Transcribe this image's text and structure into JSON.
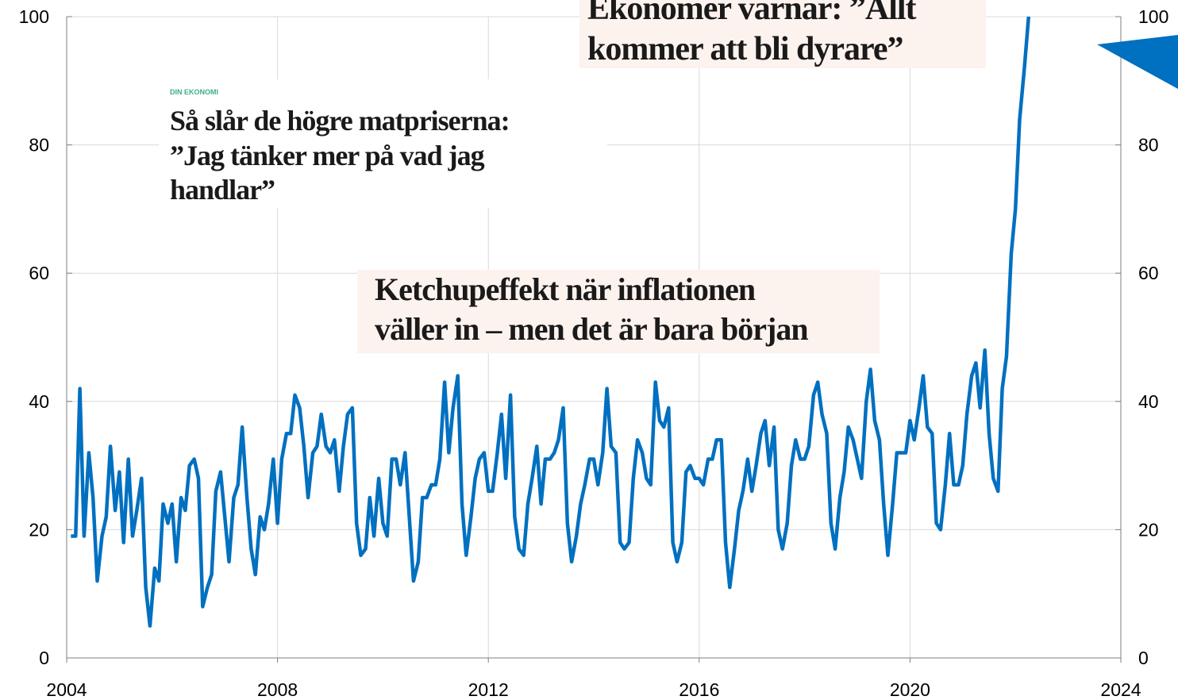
{
  "chart_data": {
    "type": "line",
    "x": [
      2004.08,
      2004.17,
      2004.25,
      2004.33,
      2004.42,
      2004.5,
      2004.58,
      2004.67,
      2004.75,
      2004.83,
      2004.92,
      2005,
      2005.08,
      2005.17,
      2005.25,
      2005.33,
      2005.42,
      2005.5,
      2005.58,
      2005.67,
      2005.75,
      2005.83,
      2005.92,
      2006,
      2006.08,
      2006.17,
      2006.25,
      2006.33,
      2006.42,
      2006.5,
      2006.58,
      2006.67,
      2006.75,
      2006.83,
      2006.92,
      2007,
      2007.08,
      2007.17,
      2007.25,
      2007.33,
      2007.42,
      2007.5,
      2007.58,
      2007.67,
      2007.75,
      2007.83,
      2007.92,
      2008,
      2008.08,
      2008.17,
      2008.25,
      2008.33,
      2008.42,
      2008.5,
      2008.58,
      2008.67,
      2008.75,
      2008.83,
      2008.92,
      2009,
      2009.08,
      2009.17,
      2009.25,
      2009.33,
      2009.42,
      2009.5,
      2009.58,
      2009.67,
      2009.75,
      2009.83,
      2009.92,
      2010,
      2010.08,
      2010.17,
      2010.25,
      2010.33,
      2010.42,
      2010.5,
      2010.58,
      2010.67,
      2010.75,
      2010.83,
      2010.92,
      2011,
      2011.08,
      2011.17,
      2011.25,
      2011.33,
      2011.42,
      2011.5,
      2011.58,
      2011.67,
      2011.75,
      2011.83,
      2011.92,
      2012,
      2012.08,
      2012.17,
      2012.25,
      2012.33,
      2012.42,
      2012.5,
      2012.58,
      2012.67,
      2012.75,
      2012.83,
      2012.92,
      2013,
      2013.08,
      2013.17,
      2013.25,
      2013.33,
      2013.42,
      2013.5,
      2013.58,
      2013.67,
      2013.75,
      2013.83,
      2013.92,
      2014,
      2014.08,
      2014.17,
      2014.25,
      2014.33,
      2014.42,
      2014.5,
      2014.58,
      2014.67,
      2014.75,
      2014.83,
      2014.92,
      2015,
      2015.08,
      2015.17,
      2015.25,
      2015.33,
      2015.42,
      2015.5,
      2015.58,
      2015.67,
      2015.75,
      2015.83,
      2015.92,
      2016,
      2016.08,
      2016.17,
      2016.25,
      2016.33,
      2016.42,
      2016.5,
      2016.58,
      2016.67,
      2016.75,
      2016.83,
      2016.92,
      2017,
      2017.08,
      2017.17,
      2017.25,
      2017.33,
      2017.42,
      2017.5,
      2017.58,
      2017.67,
      2017.75,
      2017.83,
      2017.92,
      2018,
      2018.08,
      2018.17,
      2018.25,
      2018.33,
      2018.42,
      2018.5,
      2018.58,
      2018.67,
      2018.75,
      2018.83,
      2018.92,
      2019,
      2019.08,
      2019.17,
      2019.25,
      2019.33,
      2019.42,
      2019.5,
      2019.58,
      2019.67,
      2019.75,
      2019.83,
      2019.92,
      2020,
      2020.08,
      2020.17,
      2020.25,
      2020.33,
      2020.42,
      2020.5,
      2020.58,
      2020.67,
      2020.75,
      2020.83,
      2020.92,
      2021,
      2021.08,
      2021.17,
      2021.25,
      2021.33,
      2021.42,
      2021.5,
      2021.58,
      2021.67,
      2021.75,
      2021.83,
      2021.92,
      2022,
      2022.08,
      2022.17,
      2022.25
    ],
    "series": [
      {
        "color": "#0070c0",
        "values": [
          19,
          19,
          42,
          19,
          32,
          25,
          12,
          19,
          22,
          33,
          23,
          29,
          18,
          31,
          19,
          23,
          28,
          11,
          5,
          14,
          12,
          24,
          21,
          24,
          15,
          25,
          23,
          30,
          31,
          28,
          8,
          11,
          13,
          26,
          29,
          22,
          15,
          25,
          27,
          36,
          25,
          17,
          13,
          22,
          20,
          24,
          31,
          21,
          31,
          35,
          35,
          41,
          39,
          33,
          25,
          32,
          33,
          38,
          33,
          32,
          34,
          26,
          33,
          38,
          39,
          21,
          16,
          17,
          25,
          19,
          28,
          21,
          19,
          31,
          31,
          27,
          32,
          22,
          12,
          15,
          25,
          25,
          27,
          27,
          31,
          43,
          32,
          39,
          44,
          24,
          16,
          22,
          28,
          31,
          32,
          26,
          26,
          32,
          38,
          28,
          41,
          22,
          17,
          16,
          24,
          28,
          33,
          24,
          31,
          31,
          32,
          34,
          39,
          21,
          15,
          19,
          24,
          27,
          31,
          31,
          27,
          32,
          42,
          33,
          32,
          18,
          17,
          18,
          28,
          34,
          32,
          28,
          27,
          43,
          37,
          36,
          39,
          18,
          15,
          18,
          29,
          30,
          28,
          28,
          27,
          31,
          31,
          34,
          34,
          18,
          11,
          17,
          23,
          26,
          31,
          26,
          30,
          35,
          37,
          30,
          36,
          20,
          17,
          21,
          30,
          34,
          31,
          31,
          33,
          41,
          43,
          38,
          35,
          21,
          17,
          25,
          29,
          36,
          34,
          31,
          28,
          40,
          45,
          37,
          34,
          24,
          16,
          24,
          32,
          32,
          32,
          37,
          34,
          39,
          44,
          36,
          35,
          21,
          20,
          27,
          35,
          27,
          27,
          30,
          38,
          44,
          46,
          39,
          48,
          35,
          28,
          26,
          42,
          47,
          63,
          70,
          84,
          92,
          100
        ]
      }
    ],
    "xlim": [
      2004,
      2024
    ],
    "xticks": [
      2004,
      2008,
      2012,
      2016,
      2020,
      2024
    ],
    "ylim": [
      0,
      100
    ],
    "yticks": [
      0,
      20,
      40,
      60,
      80,
      100
    ],
    "y2lim": [
      0,
      100
    ],
    "y2ticks": [
      0,
      20,
      40,
      60,
      80,
      100
    ],
    "grid": true,
    "annotations": [
      {
        "label": "DIN EKONOMI",
        "lines": [
          "Så slår de högre matpriserna:",
          "”Jag tänker mer på vad jag",
          "handlar”"
        ]
      },
      {
        "lines": [
          "Ketchupeffekt när inflationen",
          "väller in – men det är bara början"
        ]
      },
      {
        "lines": [
          "Ekonomer varnar: ”Allt",
          "kommer att bli dyrare”"
        ]
      }
    ]
  }
}
